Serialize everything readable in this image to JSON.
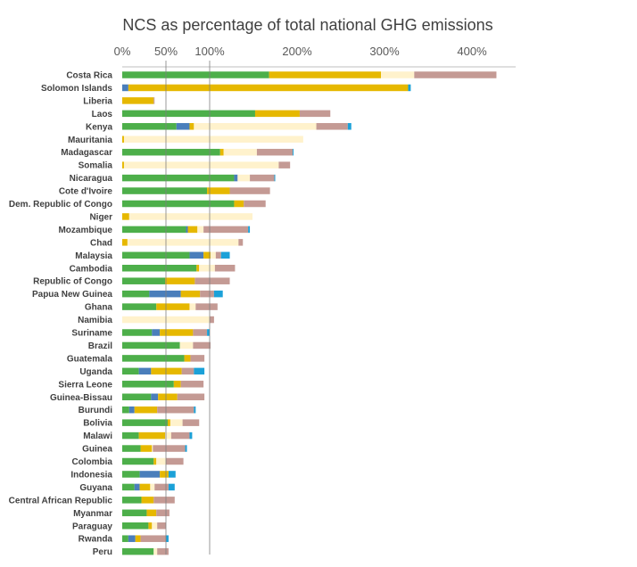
{
  "chart_data": {
    "type": "bar",
    "orientation": "horizontal",
    "stacked": true,
    "title": "NCS as percentage of total national GHG emissions",
    "xlabel": "",
    "ylabel": "",
    "xlim": [
      0,
      450
    ],
    "x_ticks": [
      0,
      50,
      100,
      200,
      300,
      400
    ],
    "x_tick_labels": [
      "0%",
      "50%",
      "100%",
      "200%",
      "300%",
      "400%"
    ],
    "x_axis_position": "top",
    "grid": false,
    "reference_lines": [
      50,
      100
    ],
    "legend": "none",
    "categories": [
      "Costa Rica",
      "Solomon Islands",
      "Liberia",
      "Laos",
      "Kenya",
      "Mauritania",
      "Madagascar",
      "Somalia",
      "Nicaragua",
      "Cote d'Ivoire",
      "Dem. Republic of Congo",
      "Niger",
      "Mozambique",
      "Chad",
      "Malaysia",
      "Cambodia",
      "Republic of Congo",
      "Papua New Guinea",
      "Ghana",
      "Namibia",
      "Suriname",
      "Brazil",
      "Guatemala",
      "Uganda",
      "Sierra Leone",
      "Guinea-Bissau",
      "Burundi",
      "Bolivia",
      "Malawi",
      "Guinea",
      "Colombia",
      "Indonesia",
      "Guyana",
      "Central African Republic",
      "Myanmar",
      "Paraguay",
      "Rwanda",
      "Peru"
    ],
    "series_colors": [
      "#4daf4a",
      "#4a7ebb",
      "#e6b800",
      "#fff2cc",
      "#c49a94",
      "#1ba1d8"
    ],
    "series": [
      {
        "values": [
          168,
          0,
          0,
          152,
          62,
          0,
          112,
          0,
          128,
          97,
          128,
          0,
          73,
          0,
          77,
          85,
          49,
          31,
          39,
          0,
          34,
          66,
          71,
          19,
          59,
          33,
          8,
          52,
          19,
          21,
          36,
          20,
          14,
          22,
          28,
          30,
          7,
          36
        ]
      },
      {
        "values": [
          0,
          7,
          0,
          0,
          15,
          0,
          0,
          0,
          4,
          0,
          0,
          0,
          2,
          0,
          16,
          0,
          0,
          36,
          0,
          0,
          9,
          0,
          0,
          14,
          0,
          8,
          6,
          0,
          0,
          0,
          0,
          23,
          6,
          0,
          0,
          0,
          8,
          0
        ]
      },
      {
        "values": [
          128,
          320,
          36,
          51,
          5,
          2,
          4,
          2,
          0,
          26,
          11,
          8,
          11,
          6,
          8,
          3,
          34,
          22,
          38,
          0,
          38,
          0,
          7,
          35,
          8,
          22,
          26,
          3,
          30,
          13,
          3,
          10,
          12,
          14,
          11,
          4,
          6,
          0
        ]
      },
      {
        "values": [
          38,
          0,
          0,
          0,
          140,
          205,
          38,
          177,
          14,
          0,
          0,
          141,
          7,
          127,
          6,
          18,
          0,
          0,
          7,
          100,
          0,
          15,
          0,
          0,
          0,
          0,
          0,
          14,
          7,
          1,
          11,
          0,
          5,
          0,
          0,
          6,
          0,
          4
        ]
      },
      {
        "values": [
          94,
          0,
          1,
          35,
          36,
          0,
          41,
          13,
          28,
          46,
          25,
          0,
          51,
          5,
          6,
          23,
          40,
          16,
          25,
          5,
          16,
          20,
          16,
          14,
          26,
          31,
          42,
          19,
          21,
          37,
          20,
          0,
          16,
          24,
          15,
          10,
          29,
          13
        ]
      },
      {
        "values": [
          0,
          3,
          0,
          0,
          4,
          0,
          1,
          0,
          1,
          0,
          0,
          0,
          2,
          0,
          10,
          0,
          0,
          10,
          0,
          0,
          3,
          0,
          0,
          12,
          0,
          0,
          2,
          0,
          3,
          2,
          0,
          8,
          7,
          0,
          0,
          0,
          3,
          0
        ]
      }
    ]
  }
}
